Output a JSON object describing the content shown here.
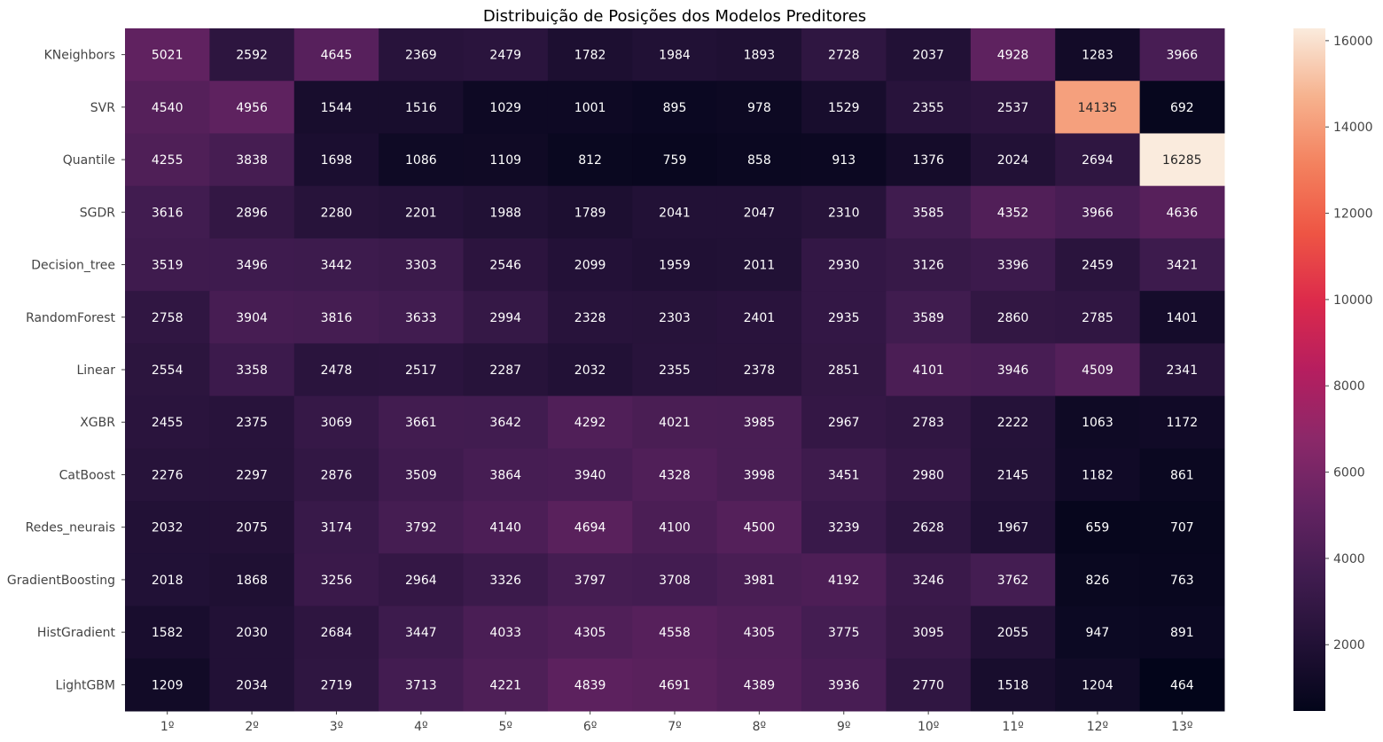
{
  "chart_data": {
    "type": "heatmap",
    "title": "Distribuição de Posições dos Modelos Preditores",
    "xlabel": "",
    "ylabel": "",
    "columns": [
      "1º",
      "2º",
      "3º",
      "4º",
      "5º",
      "6º",
      "7º",
      "8º",
      "9º",
      "10º",
      "11º",
      "12º",
      "13º"
    ],
    "rows": [
      "KNeighbors",
      "SVR",
      "Quantile",
      "SGDR",
      "Decision_tree",
      "RandomForest",
      "Linear",
      "XGBR",
      "CatBoost",
      "Redes_neurais",
      "GradientBoosting",
      "HistGradient",
      "LightGBM"
    ],
    "values": [
      [
        5021,
        2592,
        4645,
        2369,
        2479,
        1782,
        1984,
        1893,
        2728,
        2037,
        4928,
        1283,
        3966
      ],
      [
        4540,
        4956,
        1544,
        1516,
        1029,
        1001,
        895,
        978,
        1529,
        2355,
        2537,
        14135,
        692
      ],
      [
        4255,
        3838,
        1698,
        1086,
        1109,
        812,
        759,
        858,
        913,
        1376,
        2024,
        2694,
        16285
      ],
      [
        3616,
        2896,
        2280,
        2201,
        1988,
        1789,
        2041,
        2047,
        2310,
        3585,
        4352,
        3966,
        4636
      ],
      [
        3519,
        3496,
        3442,
        3303,
        2546,
        2099,
        1959,
        2011,
        2930,
        3126,
        3396,
        2459,
        3421
      ],
      [
        2758,
        3904,
        3816,
        3633,
        2994,
        2328,
        2303,
        2401,
        2935,
        3589,
        2860,
        2785,
        1401
      ],
      [
        2554,
        3358,
        2478,
        2517,
        2287,
        2032,
        2355,
        2378,
        2851,
        4101,
        3946,
        4509,
        2341
      ],
      [
        2455,
        2375,
        3069,
        3661,
        3642,
        4292,
        4021,
        3985,
        2967,
        2783,
        2222,
        1063,
        1172
      ],
      [
        2276,
        2297,
        2876,
        3509,
        3864,
        3940,
        4328,
        3998,
        3451,
        2980,
        2145,
        1182,
        861
      ],
      [
        2032,
        2075,
        3174,
        3792,
        4140,
        4694,
        4100,
        4500,
        3239,
        2628,
        1967,
        659,
        707
      ],
      [
        2018,
        1868,
        3256,
        2964,
        3326,
        3797,
        3708,
        3981,
        4192,
        3246,
        3762,
        826,
        763
      ],
      [
        1582,
        2030,
        2684,
        3447,
        4033,
        4305,
        4558,
        4305,
        3775,
        3095,
        2055,
        947,
        891
      ],
      [
        1209,
        2034,
        2719,
        3713,
        4221,
        4839,
        4691,
        4389,
        3936,
        2770,
        1518,
        1204,
        464
      ]
    ],
    "colorbar": {
      "colormap": "rocket",
      "min": 464,
      "max": 16285,
      "ticks": [
        2000,
        4000,
        6000,
        8000,
        10000,
        12000,
        14000,
        16000
      ]
    },
    "annotations": "cell values shown",
    "grid": false,
    "legend": "colorbar right"
  }
}
